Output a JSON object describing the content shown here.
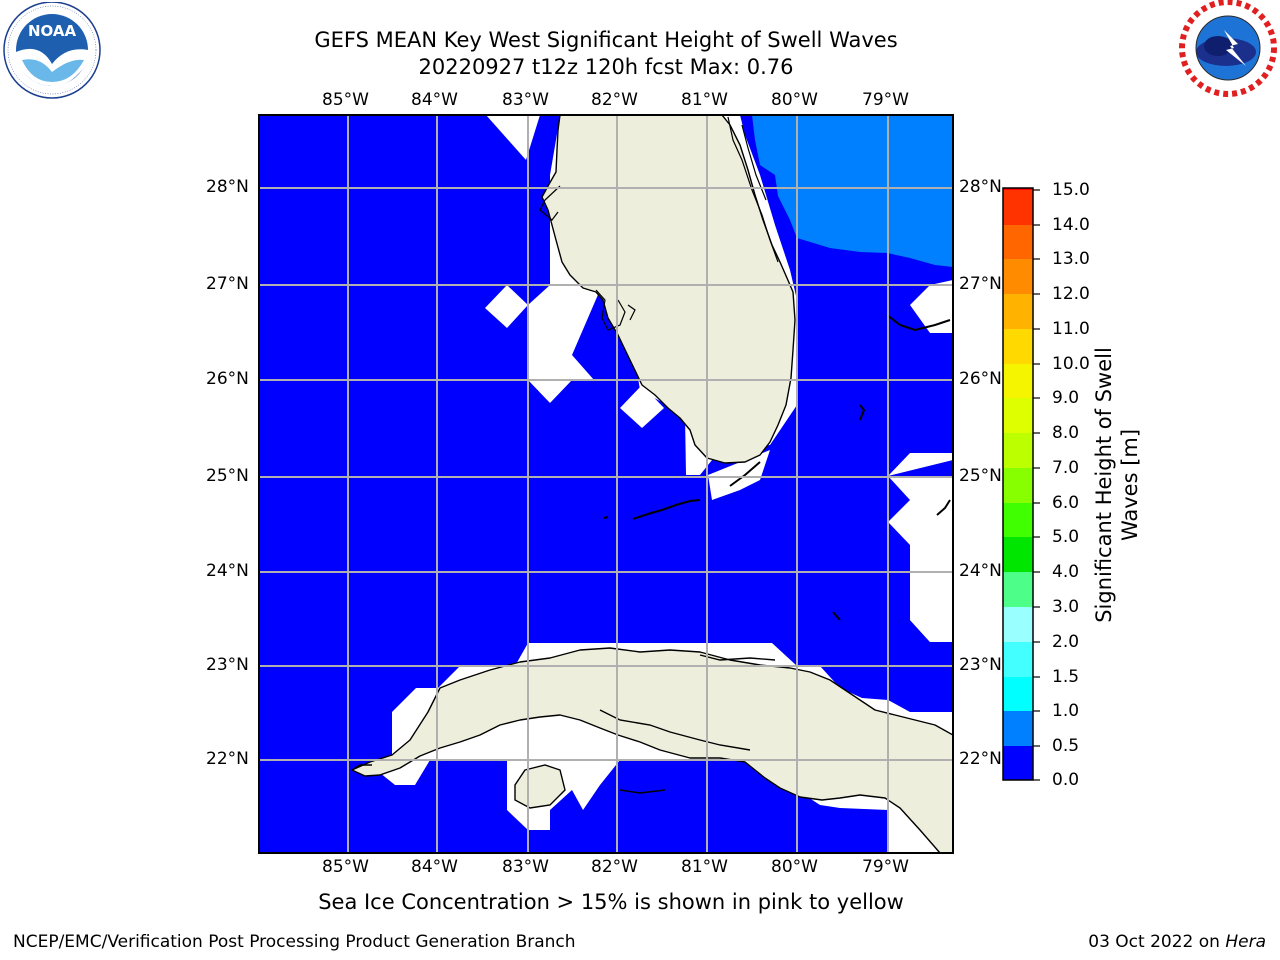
{
  "title_line1": "GEFS MEAN Key West Significant Height of Swell Waves",
  "title_line2": "20220927 t12z 120h fcst   Max: 0.76",
  "logo_left": "NOAA",
  "logo_left_ring_text": "NATIONAL OCEANIC AND ATMOSPHERIC ADMINISTRATION · U.S. DEPARTMENT OF COMMERCE",
  "logo_right_ring_text": "NATIONAL WEATHER SERVICE",
  "lon_labels": [
    "85°W",
    "84°W",
    "83°W",
    "82°W",
    "81°W",
    "80°W",
    "79°W"
  ],
  "lat_labels": [
    "28°N",
    "27°N",
    "26°N",
    "25°N",
    "24°N",
    "23°N",
    "22°N"
  ],
  "colorbar": {
    "label": "Significant Height of Swell Waves [m]",
    "label_line1": "Significant Height of Swell",
    "label_line2": "Waves [m]",
    "ticks": [
      "15.0",
      "14.0",
      "13.0",
      "12.0",
      "11.0",
      "10.0",
      "9.0",
      "8.0",
      "7.0",
      "6.0",
      "5.0",
      "4.0",
      "3.0",
      "2.0",
      "1.5",
      "1.0",
      "0.5",
      "0.0"
    ],
    "colors": [
      "#ff0000",
      "#ff2600",
      "#ff4d00",
      "#ff7300",
      "#ff9900",
      "#ffbf00",
      "#ffe600",
      "#f2ff00",
      "#ccff00",
      "#a6ff00",
      "#80ff00",
      "#33ff00",
      "#00e600",
      "#4dff80",
      "#66ffcc",
      "#33ffee",
      "#00ffff",
      "#00e0ff",
      "#0080ff",
      "#0000ff"
    ]
  },
  "colors": {
    "ocean": "#0000ff",
    "swell_high": "#0080ff",
    "land": "#eeeedd",
    "nodata": "#ffffff",
    "grid": "#b0b0b0"
  },
  "ice_note": "Sea Ice Concentration > 15% is shown in pink to yellow",
  "footer_left": "NCEP/EMC/Verification Post Processing Product Generation Branch",
  "footer_date": "03 Oct 2022 on",
  "footer_machine": "Hera"
}
